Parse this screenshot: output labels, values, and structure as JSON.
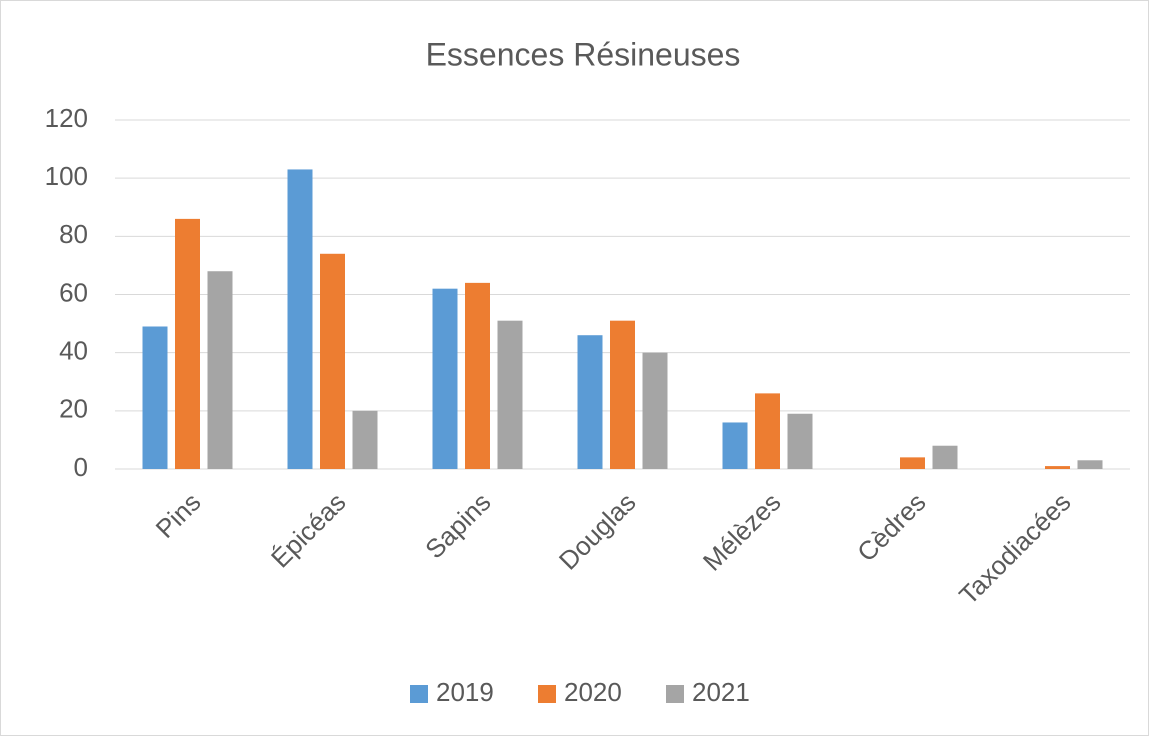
{
  "chart_data": {
    "type": "bar",
    "title": "Essences Résineuses",
    "categories": [
      "Pins",
      "Épicéas",
      "Sapins",
      "Douglas",
      "Mélèzes",
      "Cèdres",
      "Taxodiacées"
    ],
    "series": [
      {
        "name": "2019",
        "color": "#5b9bd5",
        "values": [
          49,
          103,
          62,
          46,
          16,
          0,
          0
        ]
      },
      {
        "name": "2020",
        "color": "#ed7d31",
        "values": [
          86,
          74,
          64,
          51,
          26,
          4,
          1
        ]
      },
      {
        "name": "2021",
        "color": "#a5a5a5",
        "values": [
          68,
          20,
          51,
          40,
          19,
          8,
          3
        ]
      }
    ],
    "ylim": [
      0,
      120
    ],
    "yticks": [
      0,
      20,
      40,
      60,
      80,
      100,
      120
    ],
    "grid": true,
    "legend": "bottom"
  }
}
